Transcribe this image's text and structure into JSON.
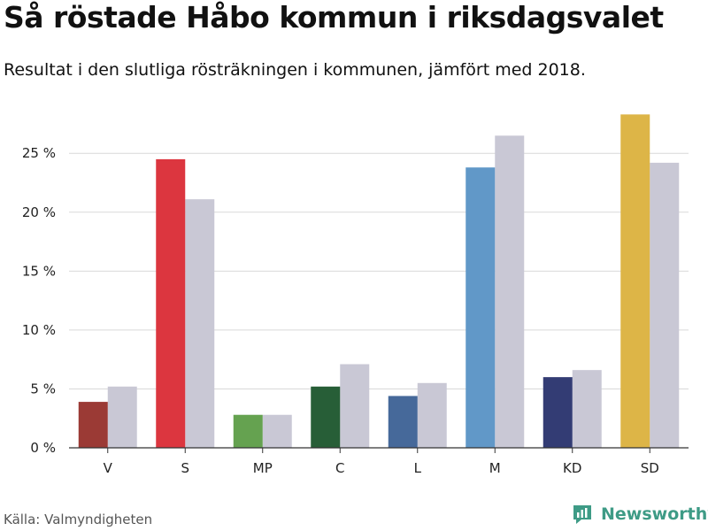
{
  "header": {
    "title": "Så röstade Håbo kommun i riksdagsvalet",
    "subtitle": "Resultat i den slutliga rösträkningen i kommunen, jämfört med 2018."
  },
  "footer": {
    "source": "Källa: Valmyndigheten",
    "brand": "Newsworthy",
    "brand_icon": "newsworthy-logo-icon",
    "brand_color": "#3e9b86"
  },
  "chart_data": {
    "type": "bar",
    "categories": [
      "V",
      "S",
      "MP",
      "C",
      "L",
      "M",
      "KD",
      "SD"
    ],
    "series": [
      {
        "values": [
          3.9,
          24.5,
          2.8,
          5.2,
          4.4,
          23.8,
          6.0,
          28.3
        ]
      },
      {
        "values": [
          5.2,
          21.1,
          2.8,
          7.1,
          5.5,
          26.5,
          6.6,
          24.2
        ]
      }
    ],
    "colors": [
      "#9b3a35",
      "#dc363f",
      "#65a250",
      "#275e37",
      "#46699a",
      "#6198c8",
      "#333c74",
      "#ddb547"
    ],
    "comparison_color": "#c9c8d5",
    "yticks": [
      0,
      5,
      10,
      15,
      20,
      25
    ],
    "ytick_suffix": " %",
    "ylim": [
      0,
      29
    ],
    "grid": true
  }
}
